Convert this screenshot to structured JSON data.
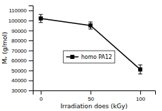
{
  "chart_data": {
    "type": "line",
    "xlabel": "Irradiation does (kGy)",
    "ylabel": "Mᵥ (g/mol)",
    "x": [
      0,
      50,
      100
    ],
    "series": [
      {
        "name": "homo PA12",
        "color": "#000000",
        "marker": "square",
        "values": [
          102000,
          95000,
          51000
        ],
        "yerr": [
          4000,
          3500,
          4500
        ]
      }
    ],
    "xlim": [
      -8,
      115
    ],
    "ylim": [
      30000,
      115000
    ],
    "xticks": [
      0,
      50,
      100
    ],
    "yticks": [
      30000,
      40000,
      50000,
      60000,
      70000,
      80000,
      90000,
      100000,
      110000
    ],
    "grid": false,
    "legend": "left"
  }
}
